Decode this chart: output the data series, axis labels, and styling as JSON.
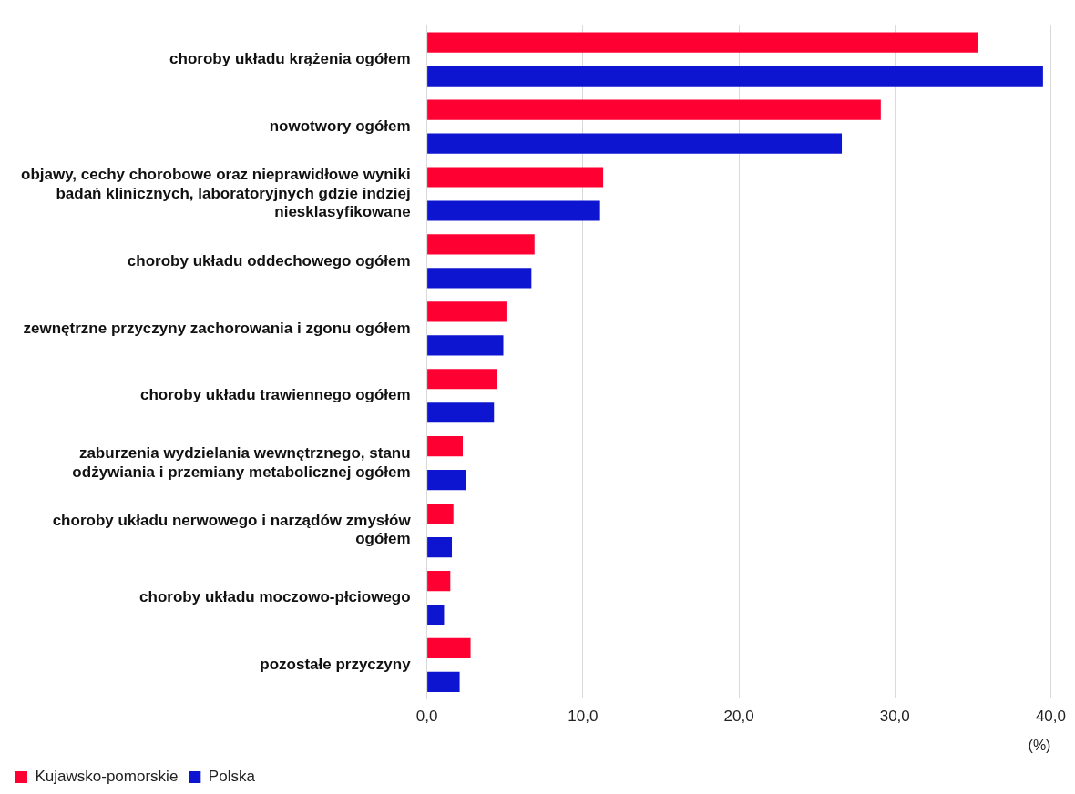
{
  "chart_data": {
    "type": "bar",
    "orientation": "horizontal",
    "xlabel": "(%)",
    "categories": [
      "choroby układu krążenia ogółem",
      "nowotwory ogółem",
      "objawy, cechy chorobowe oraz nieprawidłowe wyniki badań klinicznych, laboratoryjnych gdzie indziej niesklasyfikowane",
      "choroby układu oddechowego ogółem",
      "zewnętrzne przyczyny zachorowania i zgonu ogółem",
      "choroby układu trawiennego ogółem",
      "zaburzenia wydzielania wewnętrznego, stanu odżywiania i przemiany metabolicznej ogółem",
      "choroby układu nerwowego i narządów zmysłów ogółem",
      "choroby układu moczowo-płciowego",
      "pozostałe przyczyny"
    ],
    "series": [
      {
        "name": "Kujawsko-pomorskie",
        "color": "#ff0033",
        "values": [
          35.3,
          29.1,
          11.3,
          6.9,
          5.1,
          4.5,
          2.3,
          1.7,
          1.5,
          2.8
        ]
      },
      {
        "name": "Polska",
        "color": "#0e15d1",
        "values": [
          39.5,
          26.6,
          11.1,
          6.7,
          4.9,
          4.3,
          2.5,
          1.6,
          1.1,
          2.1
        ]
      }
    ],
    "xlim": [
      0,
      40
    ],
    "xticks": [
      {
        "value": 0,
        "label": "0,0"
      },
      {
        "value": 10,
        "label": "10,0"
      },
      {
        "value": 20,
        "label": "20,0"
      },
      {
        "value": 30,
        "label": "30,0"
      },
      {
        "value": 40,
        "label": "40,0"
      }
    ],
    "grid": "x",
    "legend": "bottom"
  }
}
